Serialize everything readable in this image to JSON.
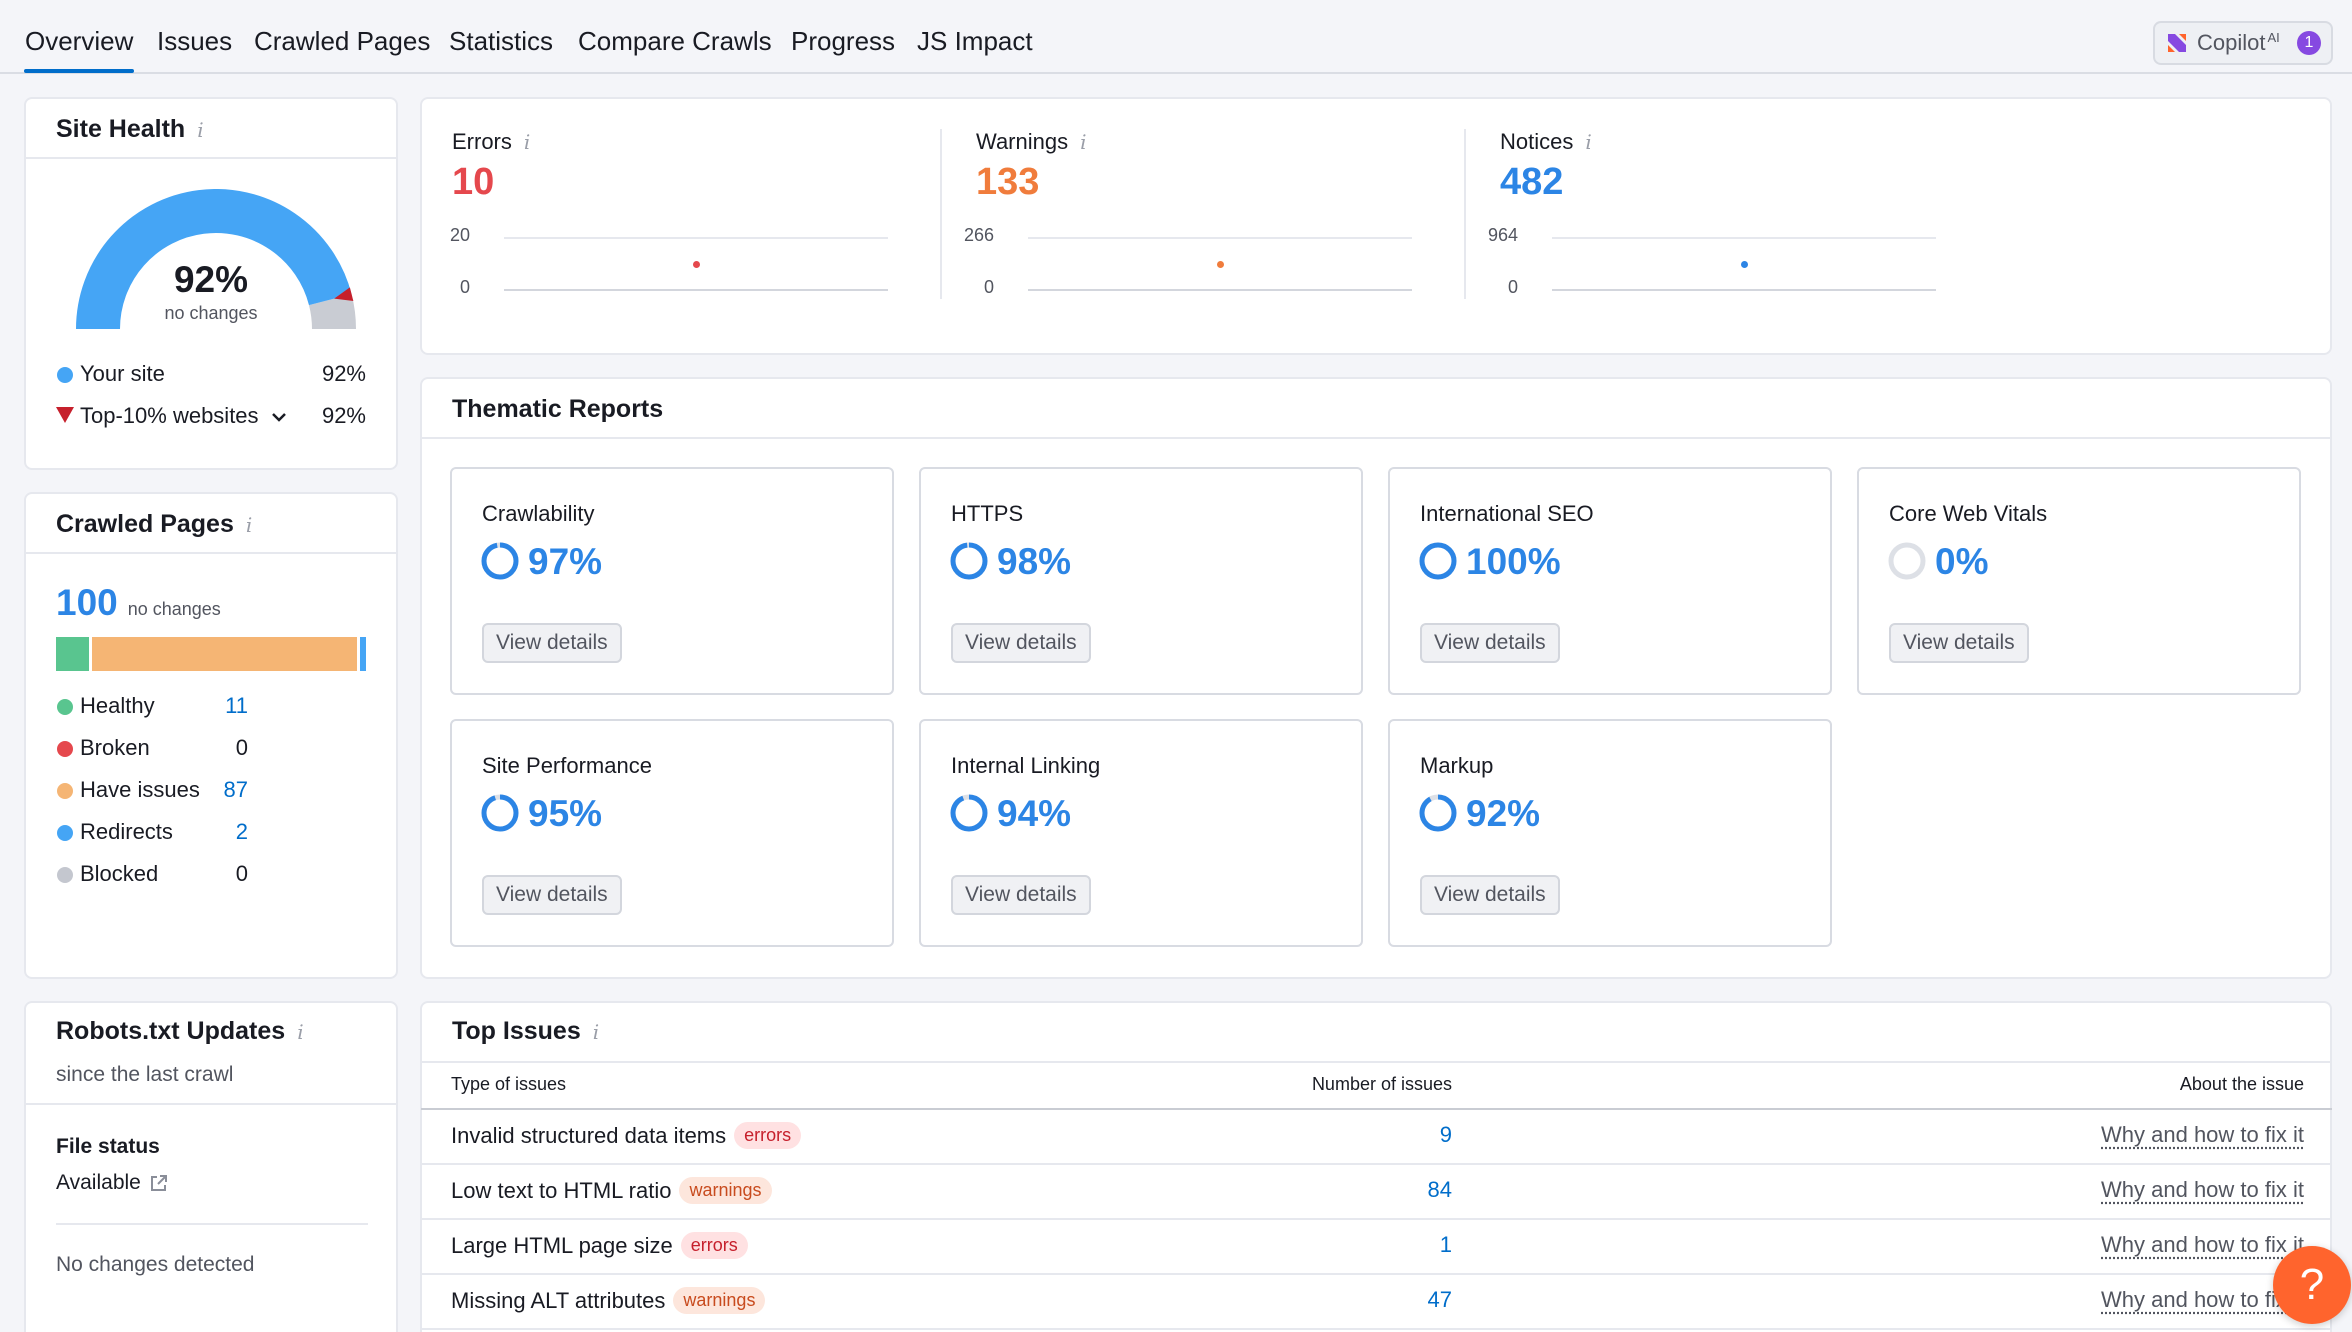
{
  "nav": {
    "tabs": [
      "Overview",
      "Issues",
      "Crawled Pages",
      "Statistics",
      "Compare Crawls",
      "Progress",
      "JS Impact"
    ],
    "copilot_label": "Copilot",
    "copilot_sup": "AI",
    "copilot_badge": "1"
  },
  "site_health": {
    "title": "Site Health",
    "percent": "92%",
    "percent_value": 92,
    "change": "no changes",
    "your_site_label": "Your site",
    "your_site_value": "92%",
    "top10_label": "Top-10% websites",
    "top10_value": "92%"
  },
  "crawled_pages": {
    "title": "Crawled Pages",
    "total": "100",
    "change": "no changes",
    "items": [
      {
        "label": "Healthy",
        "value": "11",
        "color": "#59c58f"
      },
      {
        "label": "Broken",
        "value": "0",
        "color": "#e5484d"
      },
      {
        "label": "Have issues",
        "value": "87",
        "color": "#f5b574"
      },
      {
        "label": "Redirects",
        "value": "2",
        "color": "#45a5f5"
      },
      {
        "label": "Blocked",
        "value": "0",
        "color": "#c4c7cf"
      }
    ]
  },
  "robots": {
    "title": "Robots.txt Updates",
    "subtitle": "since the last crawl",
    "file_status_label": "File status",
    "file_status_value": "Available",
    "changes": "No changes detected"
  },
  "summary": [
    {
      "label": "Errors",
      "value": "10",
      "axis_max": "20",
      "axis_min": "0",
      "color": "#e5484d"
    },
    {
      "label": "Warnings",
      "value": "133",
      "axis_max": "266",
      "axis_min": "0",
      "color": "#f07c3c"
    },
    {
      "label": "Notices",
      "value": "482",
      "axis_max": "964",
      "axis_min": "0",
      "color": "#2c85e5"
    }
  ],
  "thematic": {
    "title": "Thematic Reports",
    "button_label": "View details",
    "reports": [
      {
        "name": "Crawlability",
        "percent": "97%",
        "value": 97
      },
      {
        "name": "HTTPS",
        "percent": "98%",
        "value": 98
      },
      {
        "name": "International SEO",
        "percent": "100%",
        "value": 100
      },
      {
        "name": "Core Web Vitals",
        "percent": "0%",
        "value": 0
      },
      {
        "name": "Site Performance",
        "percent": "95%",
        "value": 95
      },
      {
        "name": "Internal Linking",
        "percent": "94%",
        "value": 94
      },
      {
        "name": "Markup",
        "percent": "92%",
        "value": 92
      }
    ]
  },
  "top_issues": {
    "title": "Top Issues",
    "col_type": "Type of issues",
    "col_count": "Number of issues",
    "col_about": "About the issue",
    "rows": [
      {
        "name": "Invalid structured data items",
        "tag": "errors",
        "count": "9",
        "link": "Why and how to fix it"
      },
      {
        "name": "Low text to HTML ratio",
        "tag": "warnings",
        "count": "84",
        "link": "Why and how to fix it"
      },
      {
        "name": "Large HTML page size",
        "tag": "errors",
        "count": "1",
        "link": "Why and how to fix it"
      },
      {
        "name": "Missing ALT attributes",
        "tag": "warnings",
        "count": "47",
        "link": "Why and how to fix it"
      }
    ]
  },
  "help_label": "?"
}
